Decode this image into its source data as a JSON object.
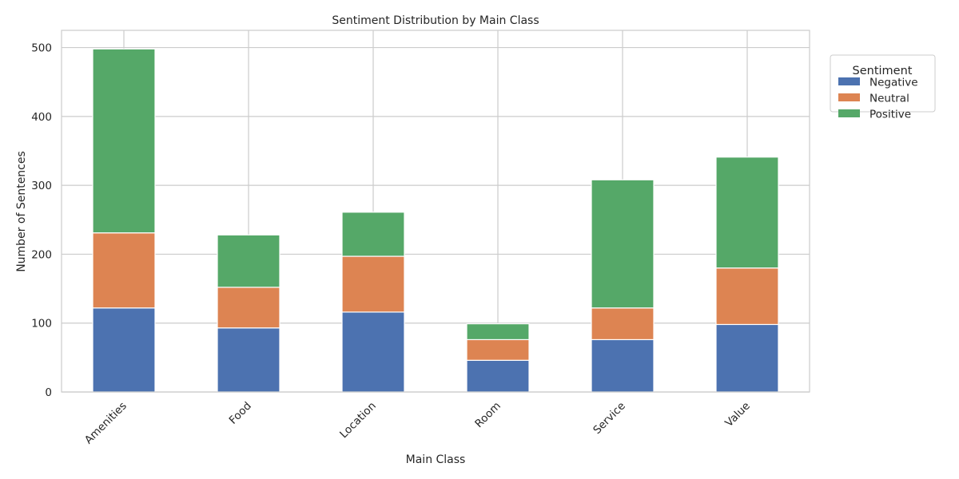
{
  "chart_data": {
    "type": "bar",
    "stacked": true,
    "title": "Sentiment Distribution by Main Class",
    "xlabel": "Main Class",
    "ylabel": "Number of Sentences",
    "categories": [
      "Amenities",
      "Food",
      "Location",
      "Room",
      "Service",
      "Value"
    ],
    "series": [
      {
        "name": "Negative",
        "color": "#4c72b0",
        "values": [
          122,
          93,
          116,
          46,
          76,
          98
        ]
      },
      {
        "name": "Neutral",
        "color": "#dd8452",
        "values": [
          109,
          59,
          81,
          30,
          46,
          82
        ]
      },
      {
        "name": "Positive",
        "color": "#55a868",
        "values": [
          267,
          76,
          64,
          23,
          186,
          161
        ]
      }
    ],
    "ylim": [
      0,
      525
    ],
    "yticks": [
      0,
      100,
      200,
      300,
      400,
      500
    ],
    "grid": true,
    "legend": {
      "title": "Sentiment",
      "placement": "outside-top-right"
    }
  }
}
